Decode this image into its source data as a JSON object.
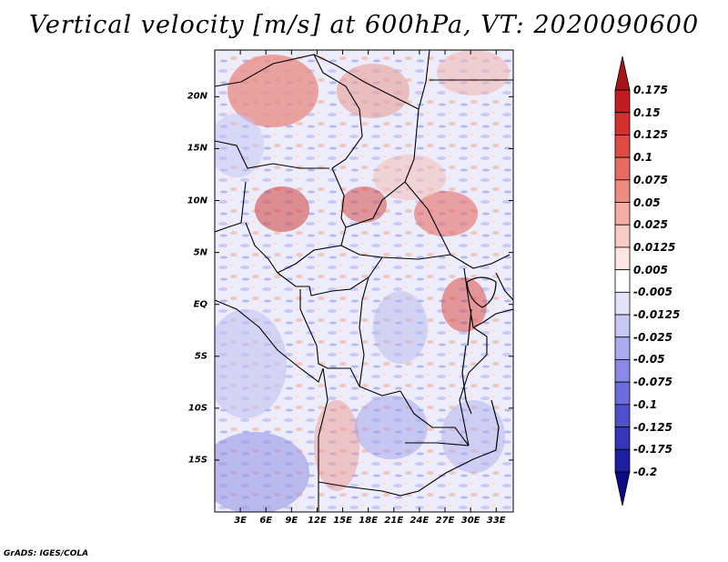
{
  "title": "Vertical velocity [m/s] at 600hPa, VT: 2020090600",
  "map": {
    "lat_labels": [
      "20N",
      "15N",
      "10N",
      "5N",
      "EQ",
      "5S",
      "10S",
      "15S"
    ],
    "lat_values": [
      20,
      15,
      10,
      5,
      0,
      -5,
      -10,
      -15
    ],
    "lon_labels": [
      "3E",
      "6E",
      "9E",
      "12E",
      "15E",
      "18E",
      "21E",
      "24E",
      "27E",
      "30E",
      "33E"
    ],
    "lon_values": [
      3,
      6,
      9,
      12,
      15,
      18,
      21,
      24,
      27,
      30,
      33
    ],
    "lat_range": [
      -20,
      24.5
    ],
    "lon_range": [
      0,
      35
    ]
  },
  "colorbar": {
    "labels": [
      "0.175",
      "0.15",
      "0.125",
      "0.1",
      "0.075",
      "0.05",
      "0.025",
      "0.0125",
      "0.005",
      "-0.005",
      "-0.0125",
      "-0.025",
      "-0.05",
      "-0.075",
      "-0.1",
      "-0.125",
      "-0.175",
      "-0.2"
    ],
    "colors": [
      "#a8141a",
      "#c11c22",
      "#d3302f",
      "#e04a44",
      "#e86a60",
      "#ef8c82",
      "#f5aca4",
      "#f9cbc5",
      "#fce6e3",
      "#ffffff",
      "#e3e3fa",
      "#c8c8f4",
      "#aaaaee",
      "#8a8ae6",
      "#6c6cdc",
      "#5050cc",
      "#3636b8",
      "#1e1ea0",
      "#0a0a88"
    ]
  },
  "credit": "GrADS: IGES/COLA"
}
